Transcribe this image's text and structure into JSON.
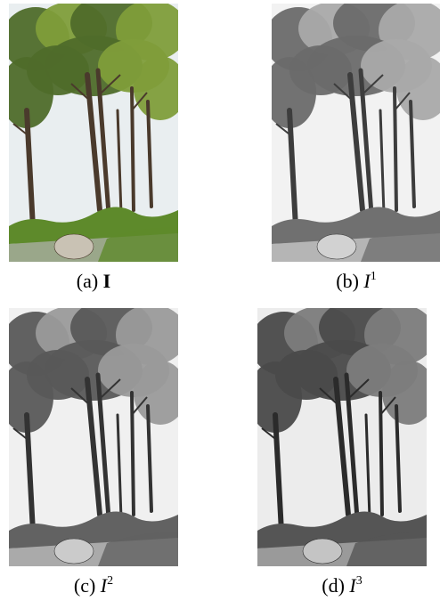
{
  "panels": [
    {
      "id": "a",
      "label_prefix": "(a)",
      "symbol": "I",
      "superscript": "",
      "symbol_style": "bold",
      "tone": "color",
      "colors": {
        "sky": "#e9eef0",
        "foliage": "#4f6b2a",
        "foliage_light": "#7f9d3a",
        "trunk": "#4a3a2c",
        "hedge": "#5e8a2b",
        "ground": "#9aa78a",
        "rock": "#c9c2b4"
      }
    },
    {
      "id": "b",
      "label_prefix": "(b)",
      "symbol": "I",
      "superscript": "1",
      "symbol_style": "italic",
      "tone": "gray-light",
      "colors": {
        "sky": "#f2f2f2",
        "foliage": "#6a6a6a",
        "foliage_light": "#a9a9a9",
        "trunk": "#3d3d3d",
        "hedge": "#707070",
        "ground": "#b5b5b5",
        "rock": "#d2d2d2"
      }
    },
    {
      "id": "c",
      "label_prefix": "(c)",
      "symbol": "I",
      "superscript": "2",
      "symbol_style": "italic",
      "tone": "gray-mid",
      "colors": {
        "sky": "#f0f0f0",
        "foliage": "#585858",
        "foliage_light": "#9a9a9a",
        "trunk": "#333333",
        "hedge": "#626262",
        "ground": "#aaaaaa",
        "rock": "#cbcbcb"
      }
    },
    {
      "id": "d",
      "label_prefix": "(d)",
      "symbol": "I",
      "superscript": "3",
      "symbol_style": "italic",
      "tone": "gray-dark",
      "colors": {
        "sky": "#ececec",
        "foliage": "#4a4a4a",
        "foliage_light": "#7c7c7c",
        "trunk": "#2b2b2b",
        "hedge": "#555555",
        "ground": "#9a9a9a",
        "rock": "#c4c4c4"
      }
    }
  ]
}
